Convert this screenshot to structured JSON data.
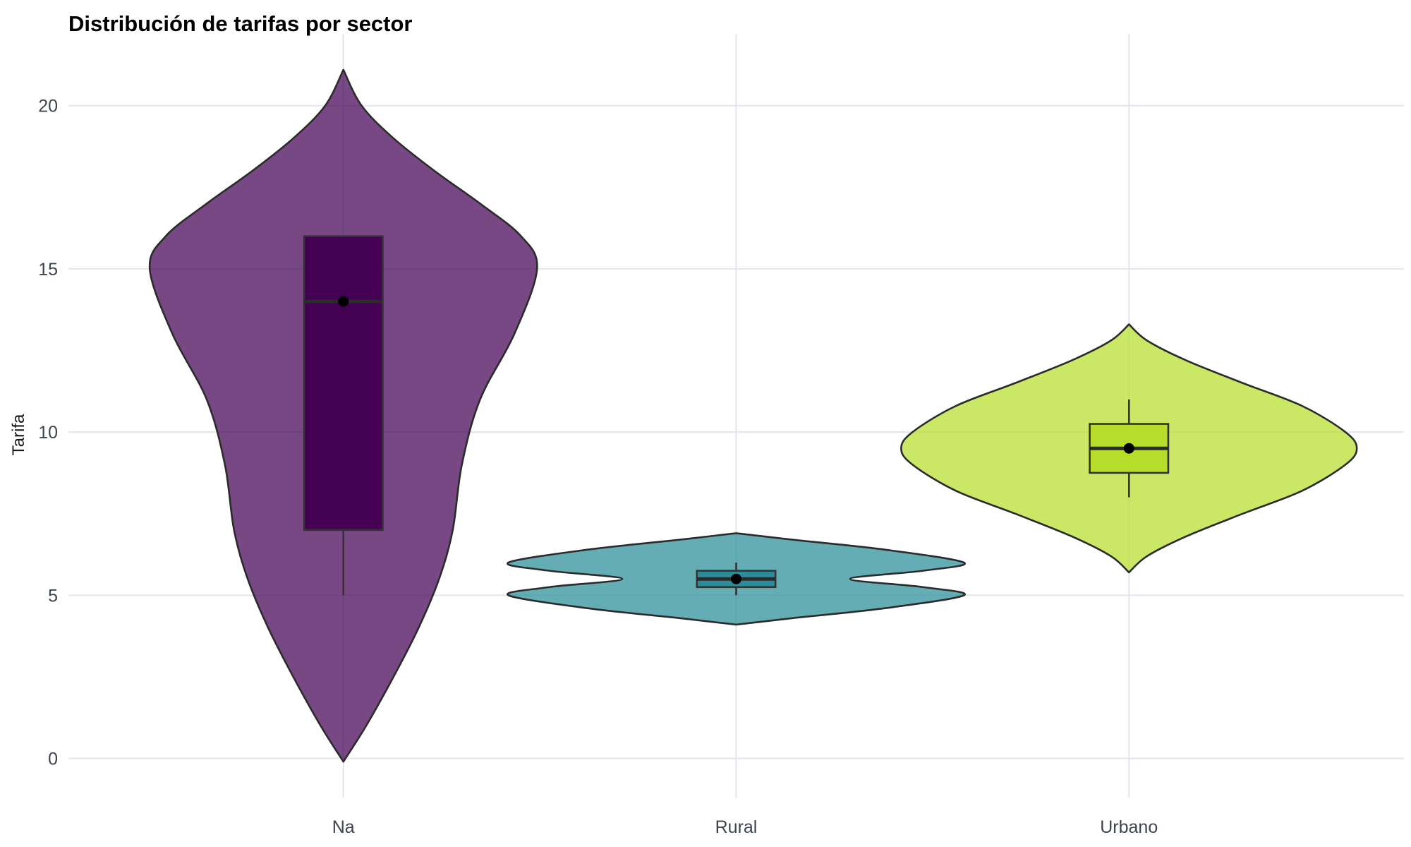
{
  "chart_data": {
    "type": "violin",
    "title": "Distribución de tarifas por sector",
    "xlabel": "",
    "ylabel": "Tarifa",
    "ylim": [
      -1.2,
      22.2
    ],
    "yticks": [
      0,
      5,
      10,
      15,
      20
    ],
    "grid": true,
    "legend": "none",
    "categories": [
      "Na",
      "Rural",
      "Urbano"
    ],
    "series": [
      {
        "category": "Na",
        "color": "#440154",
        "violin_range": [
          -0.1,
          21.1
        ],
        "density_profile": [
          [
            -0.1,
            0.0
          ],
          [
            1.0,
            0.1
          ],
          [
            2.5,
            0.22
          ],
          [
            4.0,
            0.33
          ],
          [
            5.5,
            0.42
          ],
          [
            7.0,
            0.48
          ],
          [
            9.0,
            0.52
          ],
          [
            11.0,
            0.6
          ],
          [
            13.0,
            0.75
          ],
          [
            15.0,
            0.85
          ],
          [
            16.0,
            0.78
          ],
          [
            17.0,
            0.6
          ],
          [
            18.0,
            0.4
          ],
          [
            19.0,
            0.22
          ],
          [
            20.0,
            0.08
          ],
          [
            21.1,
            0.0
          ]
        ],
        "box": {
          "whisker_low": 5,
          "q1": 7,
          "median": 14,
          "q3": 16,
          "whisker_high": 16
        },
        "mean": 14
      },
      {
        "category": "Rural",
        "color": "#2a8d99",
        "violin_range": [
          4.1,
          6.9
        ],
        "density_profile": [
          [
            4.1,
            0.0
          ],
          [
            4.3,
            0.25
          ],
          [
            4.6,
            0.65
          ],
          [
            5.0,
            1.0
          ],
          [
            5.25,
            0.82
          ],
          [
            5.5,
            0.5
          ],
          [
            5.75,
            0.82
          ],
          [
            6.0,
            1.0
          ],
          [
            6.4,
            0.65
          ],
          [
            6.7,
            0.25
          ],
          [
            6.9,
            0.0
          ]
        ],
        "box": {
          "whisker_low": 5,
          "q1": 5.25,
          "median": 5.5,
          "q3": 5.75,
          "whisker_high": 6
        },
        "mean": 5.5
      },
      {
        "category": "Urbano",
        "color": "#b5de2b",
        "violin_range": [
          5.7,
          13.3
        ],
        "density_profile": [
          [
            5.7,
            0.0
          ],
          [
            6.2,
            0.08
          ],
          [
            6.8,
            0.25
          ],
          [
            7.5,
            0.5
          ],
          [
            8.2,
            0.76
          ],
          [
            9.0,
            0.95
          ],
          [
            9.5,
            1.0
          ],
          [
            10.0,
            0.95
          ],
          [
            10.8,
            0.76
          ],
          [
            11.5,
            0.5
          ],
          [
            12.2,
            0.25
          ],
          [
            12.8,
            0.08
          ],
          [
            13.3,
            0.0
          ]
        ],
        "box": {
          "whisker_low": 8,
          "q1": 8.75,
          "median": 9.5,
          "q3": 10.25,
          "whisker_high": 11
        },
        "mean": 9.5
      }
    ]
  }
}
